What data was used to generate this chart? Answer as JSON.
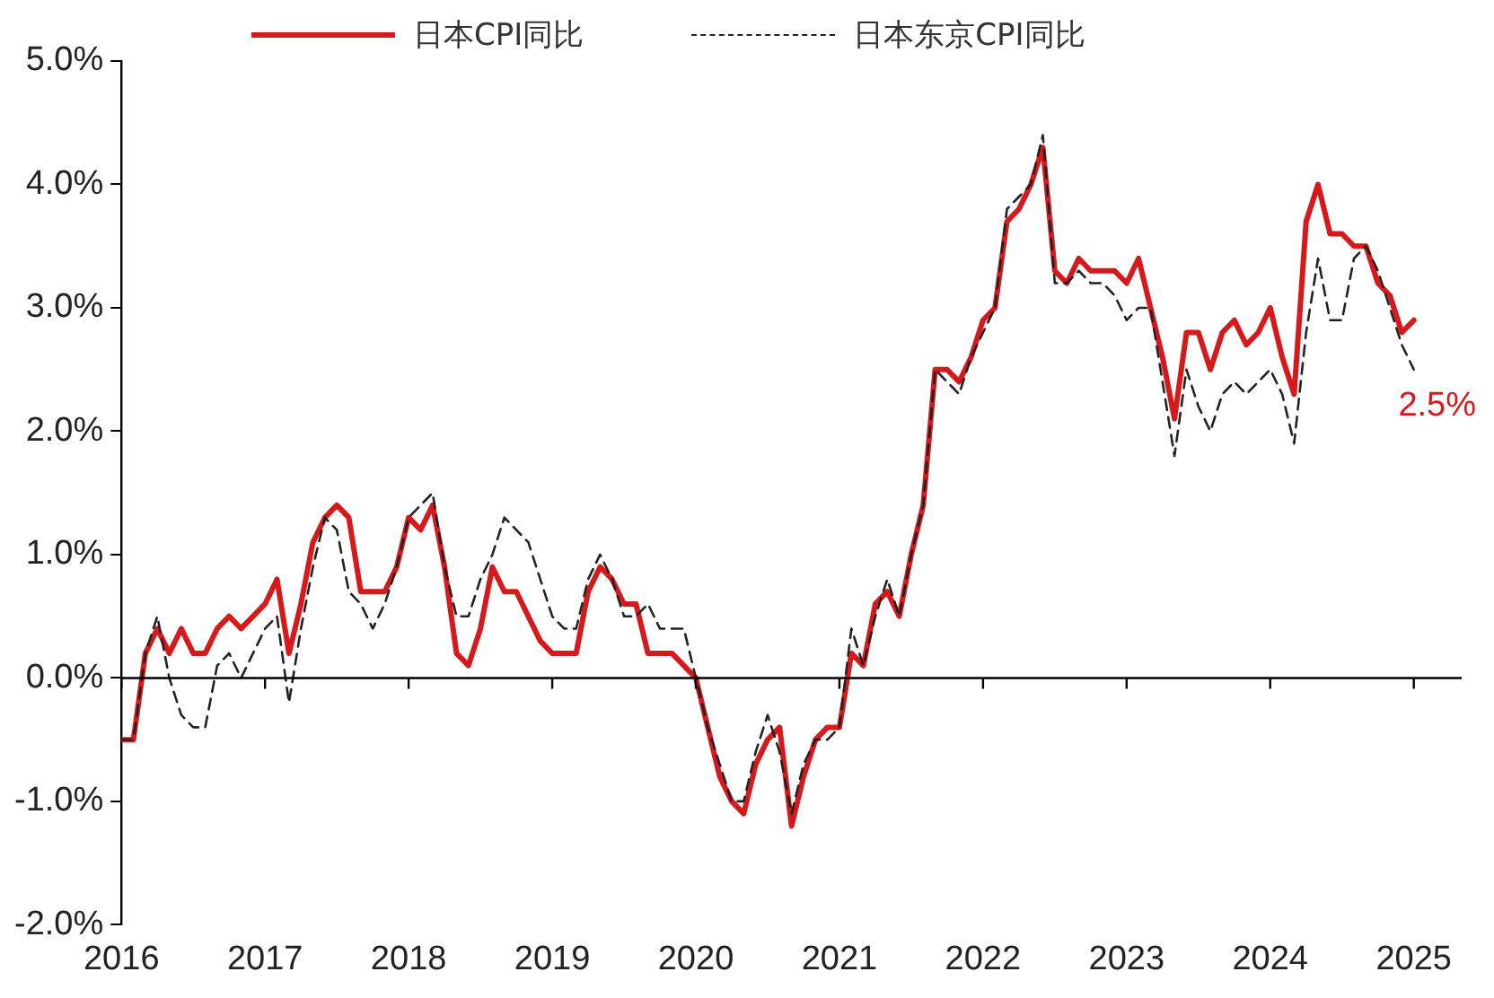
{
  "chart_data": {
    "type": "line",
    "legend": "top",
    "xlim": [
      "2016-01",
      "2025-05"
    ],
    "xticks": [
      "2016",
      "2017",
      "2018",
      "2019",
      "2020",
      "2021",
      "2022",
      "2023",
      "2024",
      "2025"
    ],
    "ylim": [
      -2,
      5
    ],
    "yticks": [
      {
        "value": -2,
        "label": "-2.0%"
      },
      {
        "value": -1,
        "label": "-1.0%"
      },
      {
        "value": 0,
        "label": "0.0%"
      },
      {
        "value": 1,
        "label": "1.0%"
      },
      {
        "value": 2,
        "label": "2.0%"
      },
      {
        "value": 3,
        "label": "3.0%"
      },
      {
        "value": 4,
        "label": "4.0%"
      },
      {
        "value": 5,
        "label": "5.0%"
      }
    ],
    "grid": false,
    "ref_lines": [
      {
        "axis": "y",
        "value": 0,
        "color": "#000000"
      }
    ],
    "annotations": [
      "2.5%"
    ],
    "series": [
      {
        "name": "日本CPI同比",
        "color": "#d7191c",
        "line_style": "solid",
        "x": [
          "2016-01",
          "2016-02",
          "2016-03",
          "2016-04",
          "2016-05",
          "2016-06",
          "2016-07",
          "2016-08",
          "2016-09",
          "2016-10",
          "2016-11",
          "2016-12",
          "2017-01",
          "2017-02",
          "2017-03",
          "2017-04",
          "2017-05",
          "2017-06",
          "2017-07",
          "2017-08",
          "2017-09",
          "2017-10",
          "2017-11",
          "2017-12",
          "2018-01",
          "2018-02",
          "2018-03",
          "2018-04",
          "2018-05",
          "2018-06",
          "2018-07",
          "2018-08",
          "2018-09",
          "2018-10",
          "2018-11",
          "2018-12",
          "2019-01",
          "2019-02",
          "2019-03",
          "2019-04",
          "2019-05",
          "2019-06",
          "2019-07",
          "2019-08",
          "2019-09",
          "2019-10",
          "2019-11",
          "2019-12",
          "2020-01",
          "2020-02",
          "2020-03",
          "2020-04",
          "2020-05",
          "2020-06",
          "2020-07",
          "2020-08",
          "2020-09",
          "2020-10",
          "2020-11",
          "2020-12",
          "2021-01",
          "2021-02",
          "2021-03",
          "2021-04",
          "2021-05",
          "2021-06",
          "2021-07",
          "2021-08",
          "2021-09",
          "2021-10",
          "2021-11",
          "2021-12",
          "2022-01",
          "2022-02",
          "2022-03",
          "2022-04",
          "2022-05",
          "2022-06",
          "2022-07",
          "2022-08",
          "2022-09",
          "2022-10",
          "2022-11",
          "2022-12",
          "2023-01",
          "2023-02",
          "2023-03",
          "2023-04",
          "2023-05",
          "2023-06",
          "2023-07",
          "2023-08",
          "2023-09",
          "2023-10",
          "2023-11",
          "2023-12",
          "2024-01",
          "2024-02",
          "2024-03",
          "2024-04",
          "2024-05",
          "2024-06",
          "2024-07",
          "2024-08",
          "2024-09",
          "2024-10",
          "2024-11",
          "2024-12",
          "2025-01"
        ],
        "values": [
          -0.5,
          -0.5,
          0.2,
          0.4,
          0.2,
          0.4,
          0.2,
          0.2,
          0.4,
          0.5,
          0.4,
          0.5,
          0.6,
          0.8,
          0.2,
          0.6,
          1.1,
          1.3,
          1.4,
          1.3,
          0.7,
          0.7,
          0.7,
          0.9,
          1.3,
          1.2,
          1.4,
          0.9,
          0.2,
          0.1,
          0.4,
          0.9,
          0.7,
          0.7,
          0.5,
          0.3,
          0.2,
          0.2,
          0.2,
          0.7,
          0.9,
          0.8,
          0.6,
          0.6,
          0.2,
          0.2,
          0.2,
          0.1,
          0.0,
          -0.4,
          -0.8,
          -1.0,
          -1.1,
          -0.7,
          -0.5,
          -0.4,
          -1.2,
          -0.8,
          -0.5,
          -0.4,
          -0.4,
          0.2,
          0.1,
          0.6,
          0.7,
          0.5,
          1.0,
          1.4,
          2.5,
          2.5,
          2.4,
          2.6,
          2.9,
          3.0,
          3.7,
          3.8,
          4.0,
          4.3,
          3.3,
          3.2,
          3.4,
          3.3,
          3.3,
          3.3,
          3.2,
          3.4,
          3.0,
          2.6,
          2.1,
          2.8,
          2.8,
          2.5,
          2.8,
          2.9,
          2.7,
          2.8,
          3.0,
          2.6,
          2.3,
          3.7,
          4.0,
          3.6,
          3.6,
          3.5,
          3.5,
          3.2,
          3.1,
          2.8,
          2.9
        ]
      },
      {
        "name": "日本东京CPI同比",
        "color": "#222222",
        "line_style": "dashed",
        "x": [
          "2016-01",
          "2016-02",
          "2016-03",
          "2016-04",
          "2016-05",
          "2016-06",
          "2016-07",
          "2016-08",
          "2016-09",
          "2016-10",
          "2016-11",
          "2016-12",
          "2017-01",
          "2017-02",
          "2017-03",
          "2017-04",
          "2017-05",
          "2017-06",
          "2017-07",
          "2017-08",
          "2017-09",
          "2017-10",
          "2017-11",
          "2017-12",
          "2018-01",
          "2018-02",
          "2018-03",
          "2018-04",
          "2018-05",
          "2018-06",
          "2018-07",
          "2018-08",
          "2018-09",
          "2018-10",
          "2018-11",
          "2018-12",
          "2019-01",
          "2019-02",
          "2019-03",
          "2019-04",
          "2019-05",
          "2019-06",
          "2019-07",
          "2019-08",
          "2019-09",
          "2019-10",
          "2019-11",
          "2019-12",
          "2020-01",
          "2020-02",
          "2020-03",
          "2020-04",
          "2020-05",
          "2020-06",
          "2020-07",
          "2020-08",
          "2020-09",
          "2020-10",
          "2020-11",
          "2020-12",
          "2021-01",
          "2021-02",
          "2021-03",
          "2021-04",
          "2021-05",
          "2021-06",
          "2021-07",
          "2021-08",
          "2021-09",
          "2021-10",
          "2021-11",
          "2021-12",
          "2022-01",
          "2022-02",
          "2022-03",
          "2022-04",
          "2022-05",
          "2022-06",
          "2022-07",
          "2022-08",
          "2022-09",
          "2022-10",
          "2022-11",
          "2022-12",
          "2023-01",
          "2023-02",
          "2023-03",
          "2023-04",
          "2023-05",
          "2023-06",
          "2023-07",
          "2023-08",
          "2023-09",
          "2023-10",
          "2023-11",
          "2023-12",
          "2024-01",
          "2024-02",
          "2024-03",
          "2024-04",
          "2024-05",
          "2024-06",
          "2024-07",
          "2024-08",
          "2024-09",
          "2024-10",
          "2024-11",
          "2024-12",
          "2025-01"
        ],
        "values": [
          -0.5,
          -0.5,
          0.2,
          0.5,
          0.0,
          -0.3,
          -0.4,
          -0.4,
          0.1,
          0.2,
          0.0,
          0.2,
          0.4,
          0.5,
          -0.2,
          0.4,
          0.9,
          1.3,
          1.2,
          0.7,
          0.6,
          0.4,
          0.6,
          0.9,
          1.3,
          1.4,
          1.5,
          0.9,
          0.5,
          0.5,
          0.8,
          1.0,
          1.3,
          1.2,
          1.1,
          0.8,
          0.5,
          0.4,
          0.4,
          0.8,
          1.0,
          0.8,
          0.5,
          0.5,
          0.6,
          0.4,
          0.4,
          0.4,
          0.0,
          -0.4,
          -0.7,
          -1.0,
          -1.0,
          -0.6,
          -0.3,
          -0.6,
          -1.1,
          -0.7,
          -0.5,
          -0.5,
          -0.4,
          0.4,
          0.1,
          0.5,
          0.8,
          0.5,
          1.0,
          1.4,
          2.5,
          2.4,
          2.3,
          2.6,
          2.8,
          3.0,
          3.8,
          3.9,
          4.0,
          4.4,
          3.2,
          3.2,
          3.3,
          3.2,
          3.2,
          3.1,
          2.9,
          3.0,
          3.0,
          2.4,
          1.8,
          2.5,
          2.2,
          2.0,
          2.3,
          2.4,
          2.3,
          2.4,
          2.5,
          2.3,
          1.9,
          2.8,
          3.4,
          2.9,
          2.9,
          3.4,
          3.5,
          3.3,
          3.0,
          2.7,
          2.5
        ]
      }
    ]
  }
}
